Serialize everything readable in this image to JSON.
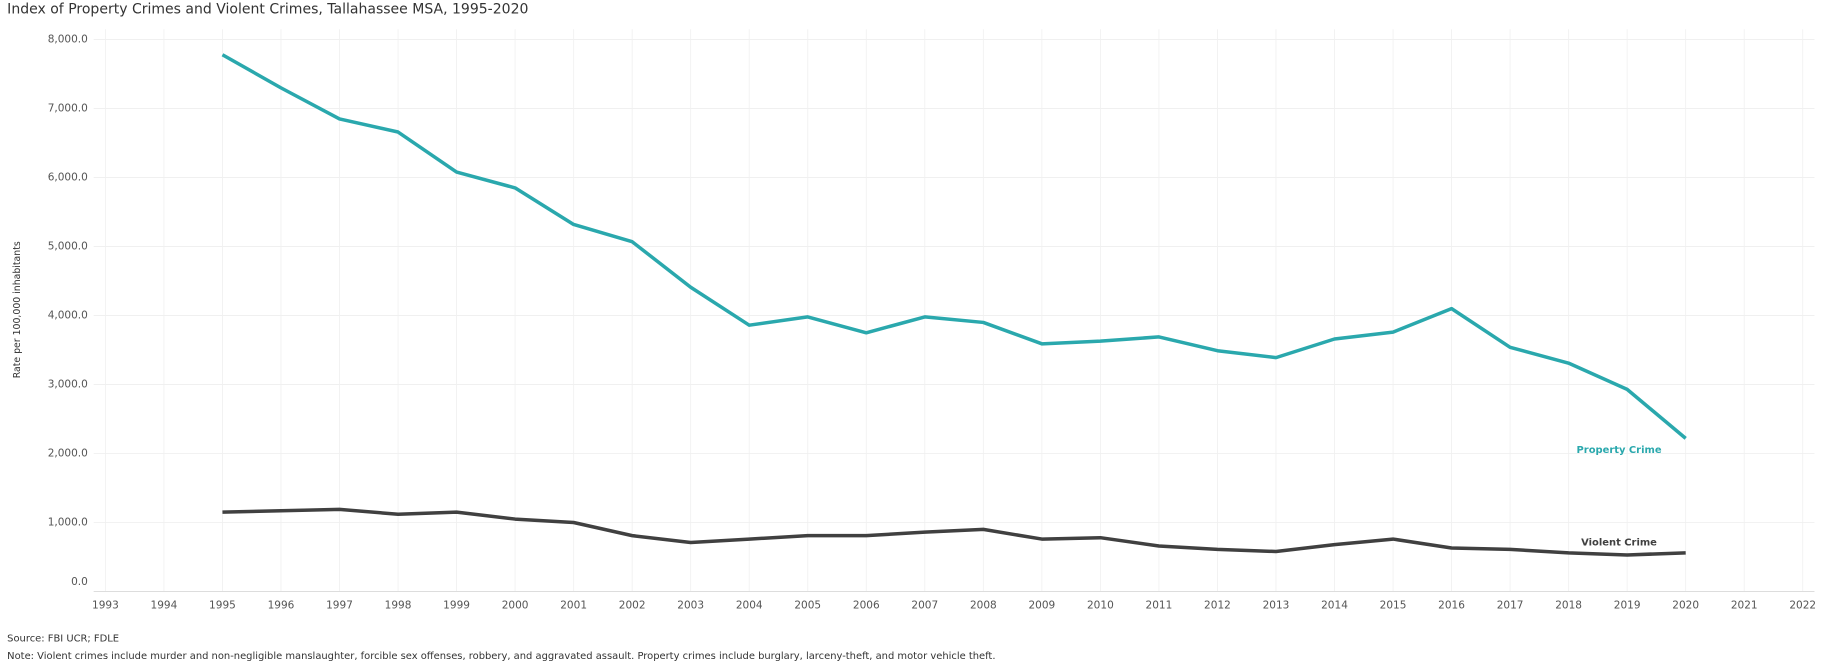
{
  "chart_data": {
    "type": "line",
    "title": "Index of Property Crimes and Violent Crimes, Tallahassee MSA, 1995-2020",
    "y_label": "Rate per 100,000 inhabitants",
    "source": "Source: FBI UCR; FDLE",
    "note": "Note: Violent crimes include murder and non-negligible manslaughter, forcible sex offenses, robbery, and aggravated assault. Property crimes include burglary, larceny-theft, and motor vehicle theft.",
    "x": [
      1995,
      1996,
      1997,
      1998,
      1999,
      2000,
      2001,
      2002,
      2003,
      2004,
      2005,
      2006,
      2007,
      2008,
      2009,
      2010,
      2011,
      2012,
      2013,
      2014,
      2015,
      2016,
      2017,
      2018,
      2019,
      2020
    ],
    "series": [
      {
        "name": "Property Crime",
        "color": "#2aa8ad",
        "values": [
          7780,
          7300,
          6850,
          6660,
          6080,
          5850,
          5320,
          5070,
          4410,
          3860,
          3980,
          3750,
          3980,
          3900,
          3590,
          3630,
          3690,
          3490,
          3390,
          3660,
          3760,
          4100,
          3540,
          3310,
          2930,
          2220
        ]
      },
      {
        "name": "Violent Crime",
        "color": "#404040",
        "values": [
          1150,
          1170,
          1190,
          1120,
          1150,
          1050,
          1000,
          810,
          710,
          760,
          810,
          810,
          860,
          900,
          760,
          780,
          660,
          610,
          580,
          680,
          760,
          630,
          610,
          560,
          530,
          560
        ]
      }
    ],
    "xlim": [
      1992.8,
      2022.2
    ],
    "xticks": [
      1993,
      1994,
      1995,
      1996,
      1997,
      1998,
      1999,
      2000,
      2001,
      2002,
      2003,
      2004,
      2005,
      2006,
      2007,
      2008,
      2009,
      2010,
      2011,
      2012,
      2013,
      2014,
      2015,
      2016,
      2017,
      2018,
      2019,
      2020,
      2021,
      2022
    ],
    "ylim": [
      0,
      8150
    ],
    "yticks": [
      {
        "value": 0,
        "label": "0.0"
      },
      {
        "value": 1000,
        "label": "1,000.0"
      },
      {
        "value": 2000,
        "label": "2,000.0"
      },
      {
        "value": 3000,
        "label": "3,000.0"
      },
      {
        "value": 4000,
        "label": "4,000.0"
      },
      {
        "value": 5000,
        "label": "5,000.0"
      },
      {
        "value": 6000,
        "label": "6,000.0"
      },
      {
        "value": 7000,
        "label": "7,000.0"
      },
      {
        "value": 8000,
        "label": "8,000.0"
      }
    ],
    "grid": true
  }
}
